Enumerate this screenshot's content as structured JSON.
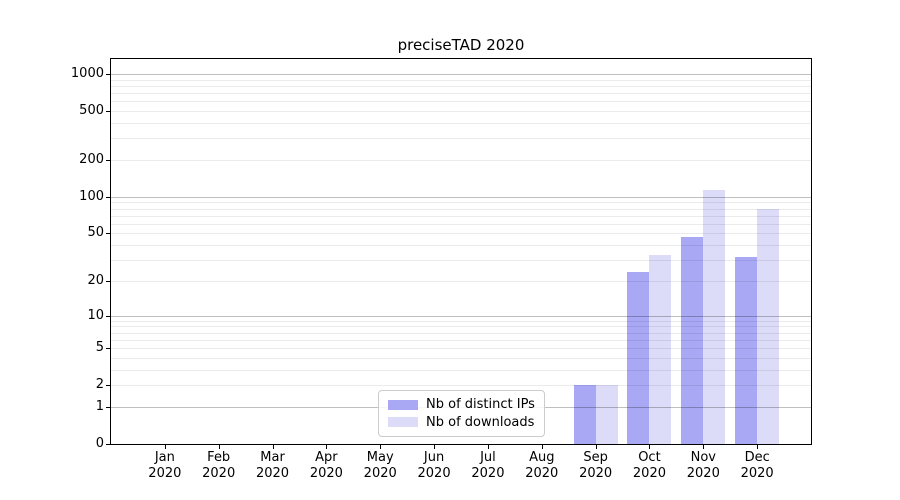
{
  "title": "preciseTAD 2020",
  "chart_data": {
    "type": "bar",
    "title": "preciseTAD 2020",
    "categories": [
      "Jan 2020",
      "Feb 2020",
      "Mar 2020",
      "Apr 2020",
      "May 2020",
      "Jun 2020",
      "Jul 2020",
      "Aug 2020",
      "Sep 2020",
      "Oct 2020",
      "Nov 2020",
      "Dec 2020"
    ],
    "series": [
      {
        "name": "Nb of distinct IPs",
        "color": "#a8a8f5",
        "values": [
          0,
          0,
          0,
          0,
          0,
          0,
          0,
          0,
          2,
          24,
          47,
          32
        ]
      },
      {
        "name": "Nb of downloads",
        "color": "#dcdcf8",
        "values": [
          0,
          0,
          0,
          0,
          0,
          0,
          0,
          0,
          2,
          33,
          113,
          80
        ]
      }
    ],
    "xlabel": "",
    "ylabel": "",
    "yscale": "log10(1+y)",
    "ylim": [
      0,
      1320
    ],
    "yticks": [
      0,
      1,
      2,
      5,
      10,
      20,
      50,
      100,
      200,
      500,
      1000
    ],
    "ytick_labels": [
      "0",
      "1",
      "2",
      "5",
      "10",
      "20",
      "50",
      "100",
      "200",
      "500",
      "1000"
    ],
    "major_grid_values": [
      1,
      10,
      100,
      1000
    ],
    "minor_grid_subs": [
      2,
      3,
      4,
      5,
      6,
      7,
      8,
      9
    ],
    "grid": "horizontal major+minor, drawn over bars",
    "legend_position": "inside lower-center-left",
    "background_color": "#ffffff",
    "spine_color": "#000000"
  }
}
